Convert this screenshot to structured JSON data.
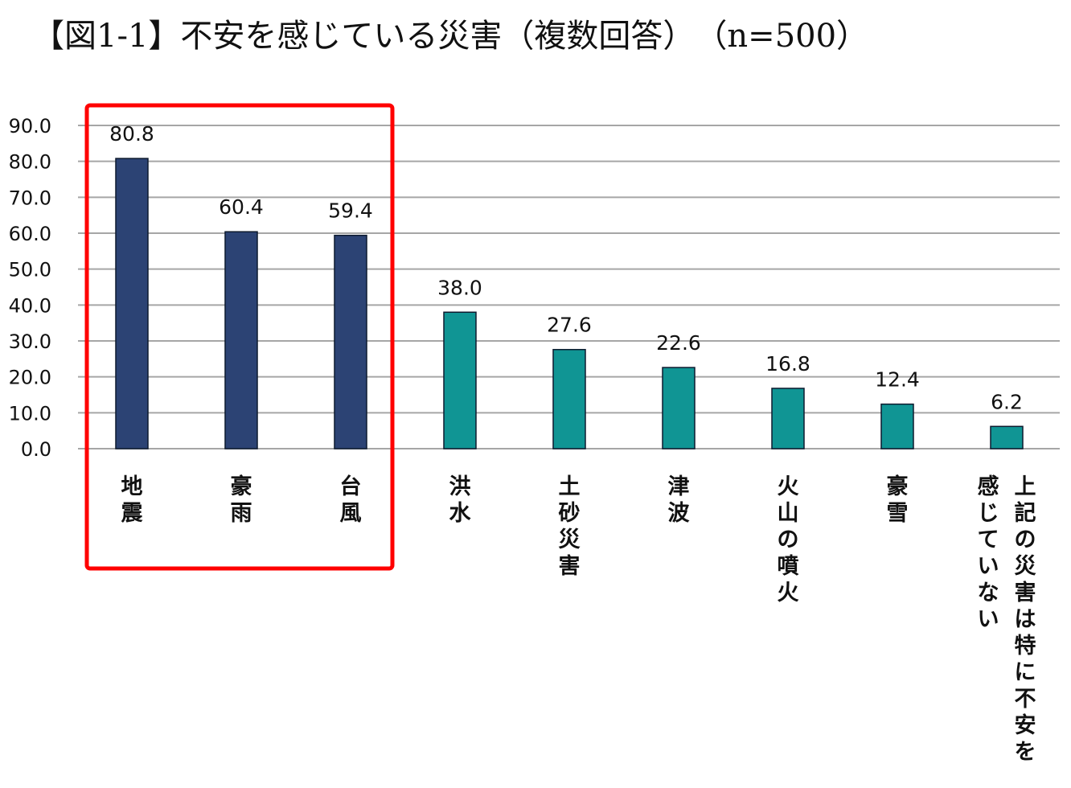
{
  "chart_data": {
    "type": "bar",
    "title": "【図1-1】不安を感じている災害（複数回答）　（n=500）",
    "categories": [
      "地震",
      "豪雨",
      "台風",
      "洪水",
      "土砂災害",
      "津波",
      "火山の噴火",
      "豪雪",
      "上記の災害は特に不安を感じていない"
    ],
    "category_lines": [
      [
        "地震"
      ],
      [
        "豪雨"
      ],
      [
        "台風"
      ],
      [
        "洪水"
      ],
      [
        "土砂災害"
      ],
      [
        "津波"
      ],
      [
        "火山の噴火"
      ],
      [
        "豪雪"
      ],
      [
        "上記の災害は特に不安を",
        "感じていない"
      ]
    ],
    "values": [
      80.8,
      60.4,
      59.4,
      38.0,
      27.6,
      22.6,
      16.8,
      12.4,
      6.2
    ],
    "value_labels": [
      "80.8",
      "60.4",
      "59.4",
      "38.0",
      "27.6",
      "22.6",
      "16.8",
      "12.4",
      "6.2"
    ],
    "yticks": [
      "0.0",
      "10.0",
      "20.0",
      "30.0",
      "40.0",
      "50.0",
      "60.0",
      "70.0",
      "80.0",
      "90.0"
    ],
    "ylim": [
      0,
      90
    ],
    "grid": true,
    "xlabel": "",
    "ylabel": "",
    "highlighted_count": 3,
    "colors": {
      "highlighted_bar": "#2c4374",
      "other_bar": "#109594",
      "bar_outline": "#0d1a2e",
      "gridline": "#a6a6a6",
      "highlight_box": "#ff0000"
    }
  }
}
